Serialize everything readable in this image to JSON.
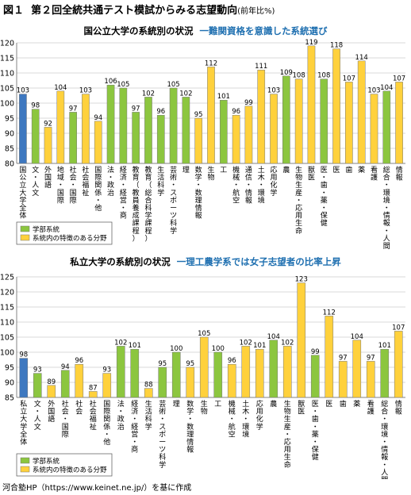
{
  "figure": {
    "label": "図１",
    "title": "第２回全統共通テスト模試からみる志望動向",
    "subtitle": "(前年比%)"
  },
  "colors": {
    "faculty": "#8cc63f",
    "feature": "#ffd13c",
    "national_total": "#3e78c0",
    "private_total": "#3e78c0",
    "grid": "#b5b5b5",
    "bar_stroke": "#777777"
  },
  "legend": {
    "faculty": "学部系統",
    "feature": "系統内の特徴のある分野"
  },
  "source": "河合塾HP（https://www.keinet.ne.jp/）を基に作成",
  "chart_data": [
    {
      "type": "bar",
      "title": "国公立大学の系統別の状況",
      "subtitle": "一難関資格を意識した系統選び",
      "ylim": [
        80,
        120
      ],
      "yticks": [
        80,
        85,
        90,
        95,
        100,
        105,
        110,
        115,
        120
      ],
      "grid": true,
      "legend_position": "bottom-left",
      "categories": [
        "国公立大学全体",
        "文・人文",
        "外国語",
        "地域・国際",
        "社会・国際",
        "社会福祉",
        "国際関係・他",
        "法・政治",
        "経済・経営・商",
        "教育（教員養成課程）",
        "教育（総合科学課程）",
        "生活科学",
        "芸術・スポーツ科学",
        "理",
        "数学・数理情報",
        "生物",
        "工",
        "機械・航空",
        "通信・情報",
        "土木・環境",
        "応用化学",
        "農",
        "生物生産・応用生命",
        "獣医",
        "医・歯・薬・保健",
        "医",
        "歯",
        "薬",
        "看護",
        "総合・環境・情報・人間",
        "情報"
      ],
      "values": [
        103,
        98,
        92,
        104,
        97,
        103,
        94,
        106,
        105,
        97,
        102,
        96,
        105,
        102,
        95,
        112,
        101,
        96,
        99,
        111,
        103,
        109,
        108,
        119,
        108,
        118,
        107,
        114,
        103,
        104,
        107
      ],
      "kinds": [
        "total",
        "faculty",
        "feature",
        "feature",
        "faculty",
        "feature",
        "feature",
        "faculty",
        "faculty",
        "faculty",
        "faculty",
        "faculty",
        "faculty",
        "faculty",
        "feature",
        "feature",
        "faculty",
        "feature",
        "feature",
        "feature",
        "feature",
        "faculty",
        "feature",
        "feature",
        "faculty",
        "feature",
        "feature",
        "feature",
        "feature",
        "faculty",
        "feature"
      ]
    },
    {
      "type": "bar",
      "title": "私立大学の系統別の状況",
      "subtitle": "一理工農学系では女子志望者の比率上昇",
      "ylim": [
        85,
        125
      ],
      "yticks": [
        85,
        90,
        95,
        100,
        105,
        110,
        115,
        120,
        125
      ],
      "grid": true,
      "legend_position": "bottom-left",
      "categories": [
        "私立大学全体",
        "文・人文",
        "外国語",
        "社会・国際",
        "社会",
        "社会福祉",
        "国際関係・他",
        "法・政治",
        "経済・経営・商",
        "生活科学",
        "芸術・スポーツ科学",
        "理",
        "数学・数理情報",
        "生物",
        "工",
        "機械・航空",
        "土木・環境",
        "応用化学",
        "農",
        "生物生産・応用生命",
        "獣医",
        "医・歯・薬・保健",
        "医",
        "歯",
        "薬",
        "看護",
        "総合・環境・情報・人間",
        "情報"
      ],
      "values": [
        98,
        93,
        89,
        94,
        96,
        87,
        93,
        102,
        101,
        88,
        95,
        100,
        95,
        105,
        100,
        96,
        102,
        101,
        104,
        102,
        123,
        99,
        112,
        97,
        104,
        97,
        101,
        107
      ],
      "kinds": [
        "total",
        "faculty",
        "feature",
        "faculty",
        "feature",
        "feature",
        "feature",
        "faculty",
        "faculty",
        "feature",
        "faculty",
        "faculty",
        "feature",
        "feature",
        "faculty",
        "feature",
        "feature",
        "feature",
        "faculty",
        "feature",
        "feature",
        "faculty",
        "feature",
        "feature",
        "feature",
        "feature",
        "faculty",
        "feature"
      ]
    }
  ]
}
